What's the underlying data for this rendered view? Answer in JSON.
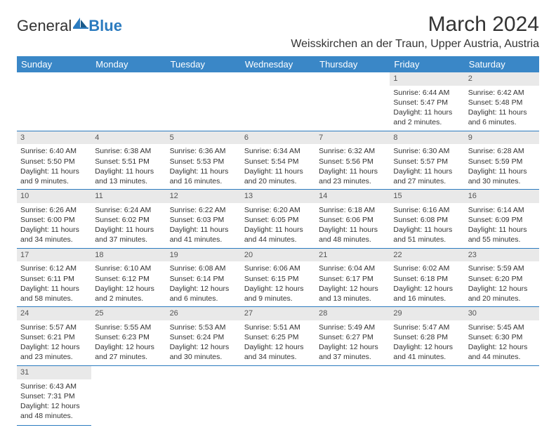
{
  "brand": {
    "part1": "General",
    "part2": "Blue"
  },
  "title": "March 2024",
  "location": "Weisskirchen an der Traun, Upper Austria, Austria",
  "colors": {
    "header_bg": "#3a87c7",
    "header_text": "#ffffff",
    "daynum_bg": "#e9e9e9",
    "row_border": "#2b7bbf",
    "brand_blue": "#2b7bbf",
    "text": "#333333",
    "background": "#ffffff"
  },
  "weekdays": [
    "Sunday",
    "Monday",
    "Tuesday",
    "Wednesday",
    "Thursday",
    "Friday",
    "Saturday"
  ],
  "weeks": [
    [
      null,
      null,
      null,
      null,
      null,
      {
        "n": "1",
        "sr": "Sunrise: 6:44 AM",
        "ss": "Sunset: 5:47 PM",
        "dl1": "Daylight: 11 hours",
        "dl2": "and 2 minutes."
      },
      {
        "n": "2",
        "sr": "Sunrise: 6:42 AM",
        "ss": "Sunset: 5:48 PM",
        "dl1": "Daylight: 11 hours",
        "dl2": "and 6 minutes."
      }
    ],
    [
      {
        "n": "3",
        "sr": "Sunrise: 6:40 AM",
        "ss": "Sunset: 5:50 PM",
        "dl1": "Daylight: 11 hours",
        "dl2": "and 9 minutes."
      },
      {
        "n": "4",
        "sr": "Sunrise: 6:38 AM",
        "ss": "Sunset: 5:51 PM",
        "dl1": "Daylight: 11 hours",
        "dl2": "and 13 minutes."
      },
      {
        "n": "5",
        "sr": "Sunrise: 6:36 AM",
        "ss": "Sunset: 5:53 PM",
        "dl1": "Daylight: 11 hours",
        "dl2": "and 16 minutes."
      },
      {
        "n": "6",
        "sr": "Sunrise: 6:34 AM",
        "ss": "Sunset: 5:54 PM",
        "dl1": "Daylight: 11 hours",
        "dl2": "and 20 minutes."
      },
      {
        "n": "7",
        "sr": "Sunrise: 6:32 AM",
        "ss": "Sunset: 5:56 PM",
        "dl1": "Daylight: 11 hours",
        "dl2": "and 23 minutes."
      },
      {
        "n": "8",
        "sr": "Sunrise: 6:30 AM",
        "ss": "Sunset: 5:57 PM",
        "dl1": "Daylight: 11 hours",
        "dl2": "and 27 minutes."
      },
      {
        "n": "9",
        "sr": "Sunrise: 6:28 AM",
        "ss": "Sunset: 5:59 PM",
        "dl1": "Daylight: 11 hours",
        "dl2": "and 30 minutes."
      }
    ],
    [
      {
        "n": "10",
        "sr": "Sunrise: 6:26 AM",
        "ss": "Sunset: 6:00 PM",
        "dl1": "Daylight: 11 hours",
        "dl2": "and 34 minutes."
      },
      {
        "n": "11",
        "sr": "Sunrise: 6:24 AM",
        "ss": "Sunset: 6:02 PM",
        "dl1": "Daylight: 11 hours",
        "dl2": "and 37 minutes."
      },
      {
        "n": "12",
        "sr": "Sunrise: 6:22 AM",
        "ss": "Sunset: 6:03 PM",
        "dl1": "Daylight: 11 hours",
        "dl2": "and 41 minutes."
      },
      {
        "n": "13",
        "sr": "Sunrise: 6:20 AM",
        "ss": "Sunset: 6:05 PM",
        "dl1": "Daylight: 11 hours",
        "dl2": "and 44 minutes."
      },
      {
        "n": "14",
        "sr": "Sunrise: 6:18 AM",
        "ss": "Sunset: 6:06 PM",
        "dl1": "Daylight: 11 hours",
        "dl2": "and 48 minutes."
      },
      {
        "n": "15",
        "sr": "Sunrise: 6:16 AM",
        "ss": "Sunset: 6:08 PM",
        "dl1": "Daylight: 11 hours",
        "dl2": "and 51 minutes."
      },
      {
        "n": "16",
        "sr": "Sunrise: 6:14 AM",
        "ss": "Sunset: 6:09 PM",
        "dl1": "Daylight: 11 hours",
        "dl2": "and 55 minutes."
      }
    ],
    [
      {
        "n": "17",
        "sr": "Sunrise: 6:12 AM",
        "ss": "Sunset: 6:11 PM",
        "dl1": "Daylight: 11 hours",
        "dl2": "and 58 minutes."
      },
      {
        "n": "18",
        "sr": "Sunrise: 6:10 AM",
        "ss": "Sunset: 6:12 PM",
        "dl1": "Daylight: 12 hours",
        "dl2": "and 2 minutes."
      },
      {
        "n": "19",
        "sr": "Sunrise: 6:08 AM",
        "ss": "Sunset: 6:14 PM",
        "dl1": "Daylight: 12 hours",
        "dl2": "and 6 minutes."
      },
      {
        "n": "20",
        "sr": "Sunrise: 6:06 AM",
        "ss": "Sunset: 6:15 PM",
        "dl1": "Daylight: 12 hours",
        "dl2": "and 9 minutes."
      },
      {
        "n": "21",
        "sr": "Sunrise: 6:04 AM",
        "ss": "Sunset: 6:17 PM",
        "dl1": "Daylight: 12 hours",
        "dl2": "and 13 minutes."
      },
      {
        "n": "22",
        "sr": "Sunrise: 6:02 AM",
        "ss": "Sunset: 6:18 PM",
        "dl1": "Daylight: 12 hours",
        "dl2": "and 16 minutes."
      },
      {
        "n": "23",
        "sr": "Sunrise: 5:59 AM",
        "ss": "Sunset: 6:20 PM",
        "dl1": "Daylight: 12 hours",
        "dl2": "and 20 minutes."
      }
    ],
    [
      {
        "n": "24",
        "sr": "Sunrise: 5:57 AM",
        "ss": "Sunset: 6:21 PM",
        "dl1": "Daylight: 12 hours",
        "dl2": "and 23 minutes."
      },
      {
        "n": "25",
        "sr": "Sunrise: 5:55 AM",
        "ss": "Sunset: 6:23 PM",
        "dl1": "Daylight: 12 hours",
        "dl2": "and 27 minutes."
      },
      {
        "n": "26",
        "sr": "Sunrise: 5:53 AM",
        "ss": "Sunset: 6:24 PM",
        "dl1": "Daylight: 12 hours",
        "dl2": "and 30 minutes."
      },
      {
        "n": "27",
        "sr": "Sunrise: 5:51 AM",
        "ss": "Sunset: 6:25 PM",
        "dl1": "Daylight: 12 hours",
        "dl2": "and 34 minutes."
      },
      {
        "n": "28",
        "sr": "Sunrise: 5:49 AM",
        "ss": "Sunset: 6:27 PM",
        "dl1": "Daylight: 12 hours",
        "dl2": "and 37 minutes."
      },
      {
        "n": "29",
        "sr": "Sunrise: 5:47 AM",
        "ss": "Sunset: 6:28 PM",
        "dl1": "Daylight: 12 hours",
        "dl2": "and 41 minutes."
      },
      {
        "n": "30",
        "sr": "Sunrise: 5:45 AM",
        "ss": "Sunset: 6:30 PM",
        "dl1": "Daylight: 12 hours",
        "dl2": "and 44 minutes."
      }
    ],
    [
      {
        "n": "31",
        "sr": "Sunrise: 6:43 AM",
        "ss": "Sunset: 7:31 PM",
        "dl1": "Daylight: 12 hours",
        "dl2": "and 48 minutes."
      },
      null,
      null,
      null,
      null,
      null,
      null
    ]
  ]
}
